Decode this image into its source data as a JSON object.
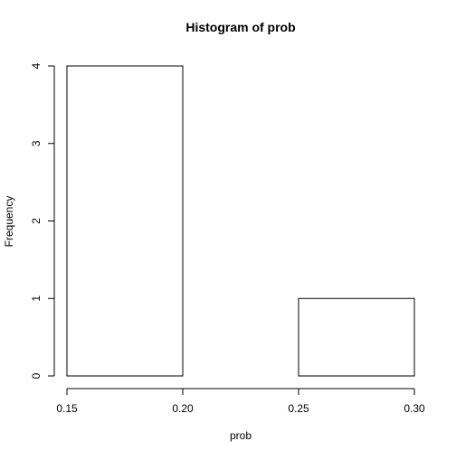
{
  "chart_data": {
    "type": "bar",
    "title": "Histogram of prob",
    "xlabel": "prob",
    "ylabel": "Frequency",
    "bins": [
      {
        "start": 0.15,
        "end": 0.2,
        "count": 4
      },
      {
        "start": 0.2,
        "end": 0.25,
        "count": 0
      },
      {
        "start": 0.25,
        "end": 0.3,
        "count": 1
      }
    ],
    "xlim": [
      0.15,
      0.3
    ],
    "ylim": [
      0,
      4
    ],
    "x_ticks": [
      "0.15",
      "0.20",
      "0.25",
      "0.30"
    ],
    "y_ticks": [
      "0",
      "1",
      "2",
      "3",
      "4"
    ],
    "grid": false,
    "bar_fill": "#ffffff",
    "bar_stroke": "#000000"
  }
}
